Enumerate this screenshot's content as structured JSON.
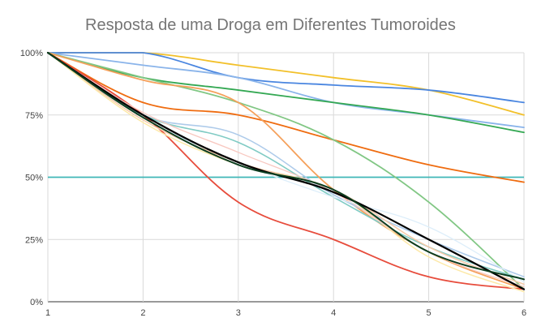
{
  "chart_data": {
    "type": "line",
    "title": "Resposta de uma Droga em Diferentes Tumoroides",
    "xlabel": "",
    "ylabel": "",
    "x": [
      1,
      2,
      3,
      4,
      5,
      6
    ],
    "xlim": [
      1,
      6
    ],
    "ylim": [
      0,
      100
    ],
    "x_ticks": [
      "1",
      "2",
      "3",
      "4",
      "5",
      "6"
    ],
    "y_ticks": [
      "0%",
      "25%",
      "50%",
      "75%",
      "100%"
    ],
    "y_tick_values": [
      0,
      25,
      50,
      75,
      100
    ],
    "grid": true,
    "legend": "none",
    "reference_line": {
      "value": 50,
      "color": "#3fb7b7"
    },
    "series": [
      {
        "color": "#f2c02a",
        "width": 1.8,
        "values": [
          100,
          100,
          95,
          90,
          85,
          75
        ]
      },
      {
        "color": "#4a86e0",
        "width": 1.8,
        "values": [
          100,
          100,
          90,
          87,
          85,
          80
        ]
      },
      {
        "color": "#8ab4ea",
        "width": 1.8,
        "values": [
          100,
          95,
          90,
          80,
          75,
          70
        ]
      },
      {
        "color": "#34a853",
        "width": 1.8,
        "values": [
          100,
          90,
          85,
          80,
          75,
          68
        ]
      },
      {
        "color": "#ef6c10",
        "width": 1.8,
        "values": [
          100,
          80,
          75,
          65,
          55,
          48
        ]
      },
      {
        "color": "#81c784",
        "width": 1.8,
        "values": [
          100,
          90,
          80,
          65,
          40,
          5
        ]
      },
      {
        "color": "#f5a05a",
        "width": 1.8,
        "values": [
          100,
          89,
          80,
          45,
          20,
          5
        ]
      },
      {
        "color": "#e74c3c",
        "width": 1.8,
        "values": [
          100,
          75,
          40,
          25,
          10,
          5
        ]
      },
      {
        "color": "#aecbea",
        "width": 1.6,
        "values": [
          100,
          75,
          67,
          43,
          25,
          10
        ]
      },
      {
        "color": "#80cbc4",
        "width": 1.6,
        "values": [
          100,
          75,
          64,
          42,
          22,
          9
        ]
      },
      {
        "color": "#f5c9a8",
        "width": 1.5,
        "values": [
          100,
          73,
          56,
          45,
          22,
          7
        ]
      },
      {
        "color": "#fde9a8",
        "width": 1.5,
        "values": [
          100,
          72,
          55,
          45,
          18,
          4
        ]
      },
      {
        "color": "#f8c8c0",
        "width": 1.3,
        "values": [
          100,
          76,
          60,
          44,
          20,
          6
        ]
      },
      {
        "color": "#ddeefa",
        "width": 1.3,
        "values": [
          100,
          74,
          56,
          42,
          30,
          8
        ]
      },
      {
        "color": "#000000",
        "width": 2.2,
        "values": [
          100,
          75,
          56,
          44,
          25,
          5
        ]
      },
      {
        "color": "#0b3d1f",
        "width": 2.0,
        "values": [
          100,
          74,
          55,
          45,
          20,
          9
        ]
      }
    ]
  }
}
